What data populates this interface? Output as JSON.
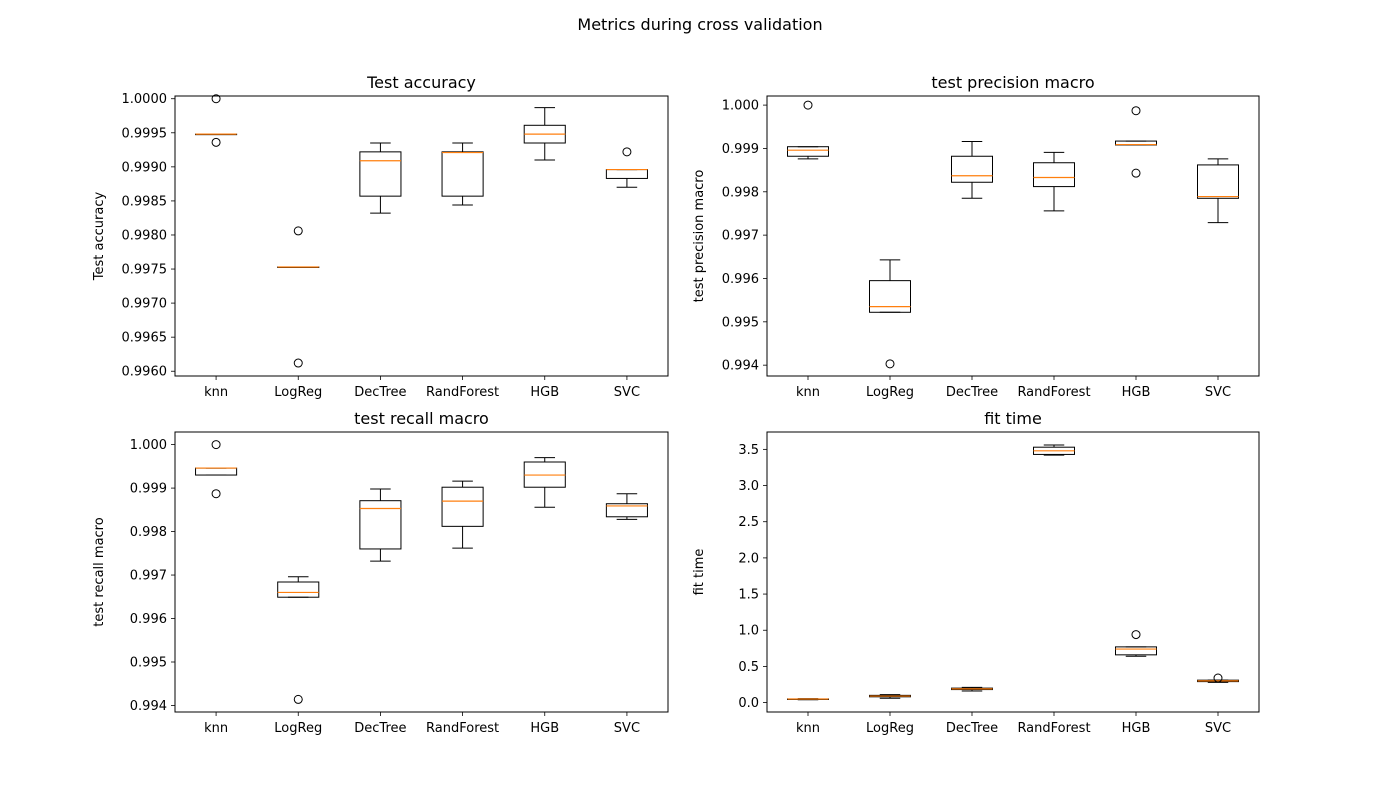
{
  "figure": {
    "suptitle": "Metrics during cross validation"
  },
  "chart_data": [
    {
      "type": "box",
      "title": "Test accuracy",
      "xlabel": "",
      "ylabel": "Test accuracy",
      "categories": [
        "knn",
        "LogReg",
        "DecTree",
        "RandForest",
        "HGB",
        "SVC"
      ],
      "ylim": [
        0.99593,
        1.00004
      ],
      "yticks": [
        0.996,
        0.9965,
        0.997,
        0.9975,
        0.998,
        0.9985,
        0.999,
        0.9995,
        1.0
      ],
      "ytick_labels": [
        "0.9960",
        "0.9965",
        "0.9970",
        "0.9975",
        "0.9980",
        "0.9985",
        "0.9990",
        "0.9995",
        "1.0000"
      ],
      "boxes": [
        {
          "whislo": 0.99948,
          "q1": 0.99948,
          "med": 0.99948,
          "q3": 0.99948,
          "whishi": 0.99948,
          "fliers": [
            1.0,
            0.99936
          ]
        },
        {
          "whislo": 0.99753,
          "q1": 0.99753,
          "med": 0.99753,
          "q3": 0.99753,
          "whishi": 0.99753,
          "fliers": [
            0.99806,
            0.99612
          ]
        },
        {
          "whislo": 0.99832,
          "q1": 0.99857,
          "med": 0.99909,
          "q3": 0.99922,
          "whishi": 0.99935,
          "fliers": []
        },
        {
          "whislo": 0.99844,
          "q1": 0.99857,
          "med": 0.99921,
          "q3": 0.99922,
          "whishi": 0.99935,
          "fliers": []
        },
        {
          "whislo": 0.9991,
          "q1": 0.99935,
          "med": 0.99948,
          "q3": 0.99961,
          "whishi": 0.99987,
          "fliers": []
        },
        {
          "whislo": 0.9987,
          "q1": 0.99883,
          "med": 0.99896,
          "q3": 0.99896,
          "whishi": 0.99896,
          "fliers": [
            0.99922
          ]
        }
      ]
    },
    {
      "type": "box",
      "title": "test precision macro",
      "xlabel": "",
      "ylabel": "test precision macro",
      "categories": [
        "knn",
        "LogReg",
        "DecTree",
        "RandForest",
        "HGB",
        "SVC"
      ],
      "ylim": [
        0.99375,
        1.00021
      ],
      "yticks": [
        0.994,
        0.995,
        0.996,
        0.997,
        0.998,
        0.999,
        1.0
      ],
      "ytick_labels": [
        "0.994",
        "0.995",
        "0.996",
        "0.997",
        "0.998",
        "0.999",
        "1.000"
      ],
      "boxes": [
        {
          "whislo": 0.99876,
          "q1": 0.99882,
          "med": 0.99896,
          "q3": 0.99904,
          "whishi": 0.99904,
          "fliers": [
            1.0
          ]
        },
        {
          "whislo": 0.99522,
          "q1": 0.99522,
          "med": 0.99535,
          "q3": 0.99595,
          "whishi": 0.99643,
          "fliers": [
            0.99403
          ]
        },
        {
          "whislo": 0.99785,
          "q1": 0.99822,
          "med": 0.99837,
          "q3": 0.99882,
          "whishi": 0.99916,
          "fliers": []
        },
        {
          "whislo": 0.99756,
          "q1": 0.99812,
          "med": 0.99833,
          "q3": 0.99867,
          "whishi": 0.99891,
          "fliers": []
        },
        {
          "whislo": 0.99908,
          "q1": 0.99908,
          "med": 0.99909,
          "q3": 0.99917,
          "whishi": 0.99917,
          "fliers": [
            0.99987,
            0.99843
          ]
        },
        {
          "whislo": 0.99729,
          "q1": 0.99785,
          "med": 0.99789,
          "q3": 0.99862,
          "whishi": 0.99876,
          "fliers": []
        }
      ]
    },
    {
      "type": "box",
      "title": "test recall macro",
      "xlabel": "",
      "ylabel": "test recall macro",
      "categories": [
        "knn",
        "LogReg",
        "DecTree",
        "RandForest",
        "HGB",
        "SVC"
      ],
      "ylim": [
        0.99385,
        1.00029
      ],
      "yticks": [
        0.994,
        0.995,
        0.996,
        0.997,
        0.998,
        0.999,
        1.0
      ],
      "ytick_labels": [
        "0.994",
        "0.995",
        "0.996",
        "0.997",
        "0.998",
        "0.999",
        "1.000"
      ],
      "boxes": [
        {
          "whislo": 0.9993,
          "q1": 0.9993,
          "med": 0.99946,
          "q3": 0.99946,
          "whishi": 0.99946,
          "fliers": [
            1.0,
            0.99887
          ]
        },
        {
          "whislo": 0.99649,
          "q1": 0.99649,
          "med": 0.9966,
          "q3": 0.99684,
          "whishi": 0.99696,
          "fliers": [
            0.99414
          ]
        },
        {
          "whislo": 0.99732,
          "q1": 0.9976,
          "med": 0.99853,
          "q3": 0.99871,
          "whishi": 0.99898,
          "fliers": []
        },
        {
          "whislo": 0.99762,
          "q1": 0.99812,
          "med": 0.9987,
          "q3": 0.99902,
          "whishi": 0.99916,
          "fliers": []
        },
        {
          "whislo": 0.99856,
          "q1": 0.99902,
          "med": 0.9993,
          "q3": 0.9996,
          "whishi": 0.9997,
          "fliers": []
        },
        {
          "whislo": 0.99828,
          "q1": 0.99834,
          "med": 0.99859,
          "q3": 0.99864,
          "whishi": 0.99887,
          "fliers": []
        }
      ]
    },
    {
      "type": "box",
      "title": "fit time",
      "xlabel": "",
      "ylabel": "fit time",
      "categories": [
        "knn",
        "LogReg",
        "DecTree",
        "RandForest",
        "HGB",
        "SVC"
      ],
      "ylim": [
        -0.13,
        3.74
      ],
      "yticks": [
        0.0,
        0.5,
        1.0,
        1.5,
        2.0,
        2.5,
        3.0,
        3.5
      ],
      "ytick_labels": [
        "0.0",
        "0.5",
        "1.0",
        "1.5",
        "2.0",
        "2.5",
        "3.0",
        "3.5"
      ],
      "boxes": [
        {
          "whislo": 0.04,
          "q1": 0.045,
          "med": 0.05,
          "q3": 0.05,
          "whishi": 0.055,
          "fliers": []
        },
        {
          "whislo": 0.06,
          "q1": 0.08,
          "med": 0.09,
          "q3": 0.1,
          "whishi": 0.11,
          "fliers": []
        },
        {
          "whislo": 0.16,
          "q1": 0.18,
          "med": 0.19,
          "q3": 0.2,
          "whishi": 0.21,
          "fliers": []
        },
        {
          "whislo": 3.42,
          "q1": 3.43,
          "med": 3.48,
          "q3": 3.53,
          "whishi": 3.56,
          "fliers": []
        },
        {
          "whislo": 0.64,
          "q1": 0.66,
          "med": 0.74,
          "q3": 0.77,
          "whishi": 0.77,
          "fliers": [
            0.94
          ]
        },
        {
          "whislo": 0.28,
          "q1": 0.29,
          "med": 0.3,
          "q3": 0.31,
          "whishi": 0.31,
          "fliers": [
            0.34
          ]
        }
      ]
    }
  ],
  "colors": {
    "box": "#000000",
    "median": "#ff7f0e",
    "flier_edge": "#000000"
  }
}
